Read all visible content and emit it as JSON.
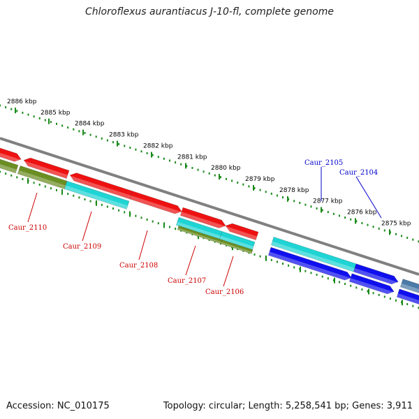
{
  "title": "Chloroflexus aurantiacus J-10-fl, complete genome",
  "footer": {
    "accession": "Accession: NC_010175",
    "stats": "Topology: circular; Length: 5,258,541 bp; Genes: 3,911"
  },
  "colors": {
    "tick_green": "#1a8a1a",
    "backbone": "#808080",
    "red": "#ee1111",
    "olive": "#6b8e23",
    "cyan": "#1fd4d4",
    "blue": "#1010ee",
    "steelblue": "#4a7aa8",
    "label_red": "#cc0000",
    "label_blue": "#0000cc"
  },
  "kbp_ticks": [
    {
      "text": "2886 kbp"
    },
    {
      "text": "2885 kbp"
    },
    {
      "text": "2884 kbp"
    },
    {
      "text": "2883 kbp"
    },
    {
      "text": "2882 kbp"
    },
    {
      "text": "2881 kbp"
    },
    {
      "text": "2880 kbp"
    },
    {
      "text": "2879 kbp"
    },
    {
      "text": "2878 kbp"
    },
    {
      "text": "2877 kbp"
    },
    {
      "text": "2876 kbp"
    },
    {
      "text": "2875 kbp"
    }
  ],
  "gene_labels": [
    {
      "text": "Caur_2110",
      "color": "red"
    },
    {
      "text": "Caur_2109",
      "color": "red"
    },
    {
      "text": "Caur_2108",
      "color": "red"
    },
    {
      "text": "Caur_2107",
      "color": "red"
    },
    {
      "text": "Caur_2106",
      "color": "red"
    },
    {
      "text": "Caur_2105",
      "color": "blue"
    },
    {
      "text": "Caur_2104",
      "color": "blue"
    }
  ]
}
